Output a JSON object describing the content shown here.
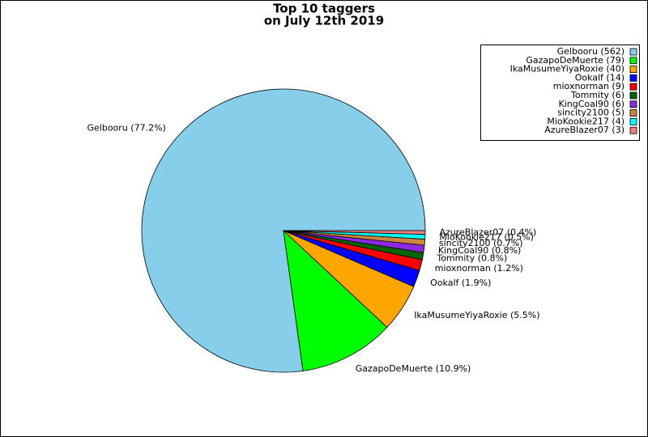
{
  "chart_data": {
    "type": "pie",
    "title": "Top 10 taggers",
    "subtitle": "on July 12th 2019",
    "categories": [
      "Gelbooru",
      "GazapoDeMuerte",
      "IkaMusumeYiyaRoxie",
      "Ookalf",
      "mioxnorman",
      "Tommity",
      "KingCoal90",
      "sincity2100",
      "MioKookie217",
      "AzureBlazer07"
    ],
    "values": [
      562,
      79,
      40,
      14,
      9,
      6,
      6,
      5,
      4,
      3
    ],
    "value_labels": [
      "Gelbooru (562)",
      "GazapoDeMuerte (79)",
      "IkaMusumeYiyaRoxie (40)",
      "Ookalf (14)",
      "mioxnorman (9)",
      "Tommity (6)",
      "KingCoal90 (6)",
      "sincity2100 (5)",
      "MioKookie217 (4)",
      "AzureBlazer07 (3)"
    ],
    "slice_labels": [
      "Gelbooru (77.2%)",
      "GazapoDeMuerte (10.9%)",
      "IkaMusumeYiyaRoxie (5.5%)",
      "Ookalf (1.9%)",
      "mioxnorman (1.2%)",
      "Tommity (0.8%)",
      "KingCoal90 (0.8%)",
      "sincity2100 (0.7%)",
      "MioKookie217 (0.5%)",
      "AzureBlazer07 (0.4%)"
    ],
    "colors": [
      "#87ceeb",
      "#00ff00",
      "#ffa500",
      "#0000ff",
      "#ff0000",
      "#006400",
      "#8a2be2",
      "#cd853f",
      "#00ffff",
      "#f08080"
    ],
    "legend": "upper right"
  }
}
